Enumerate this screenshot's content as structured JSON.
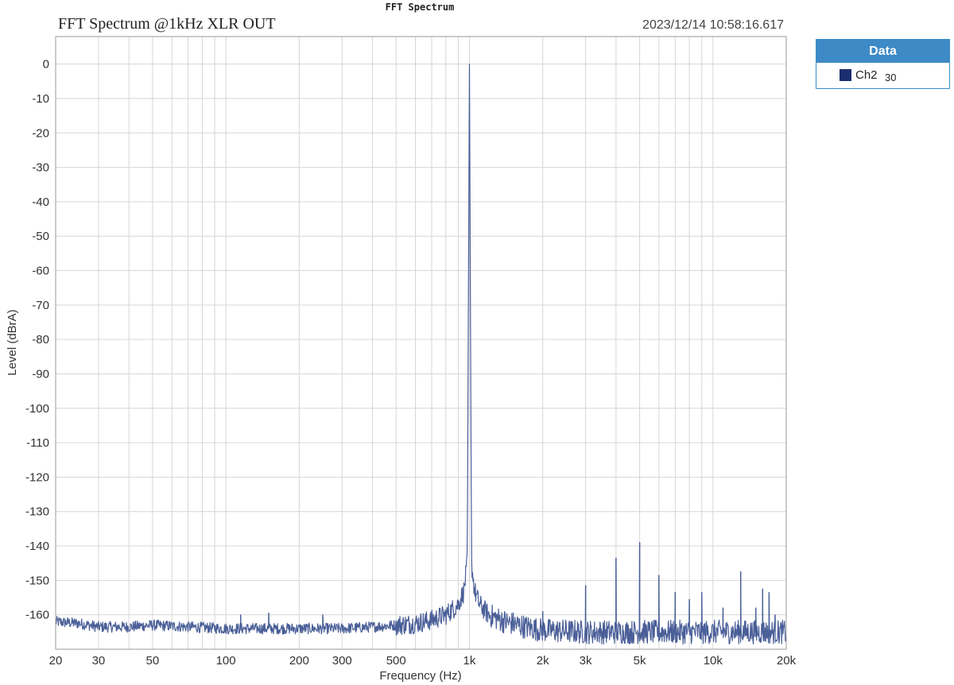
{
  "window": {
    "title": "FFT Spectrum"
  },
  "timestamp": "2023/12/14 10:58:16.617",
  "legend": {
    "header": "Data",
    "items": [
      {
        "name": "Ch2",
        "count": "30",
        "color": "#1b2f6e"
      }
    ]
  },
  "colors": {
    "trace": "#4a5f98",
    "grid": "#d6d6d6",
    "legend_header": "#3d8ac6"
  },
  "chart_data": {
    "type": "line",
    "title": "FFT Spectrum @1kHz XLR OUT",
    "xlabel": "Frequency (Hz)",
    "ylabel": "Level (dBrA)",
    "xscale": "log",
    "xlim": [
      20,
      20000
    ],
    "ylim": [
      -170,
      8
    ],
    "grid": true,
    "legend_position": "right-outside",
    "x_ticks": [
      {
        "v": 20,
        "label": "20"
      },
      {
        "v": 30,
        "label": "30"
      },
      {
        "v": 50,
        "label": "50"
      },
      {
        "v": 100,
        "label": "100"
      },
      {
        "v": 200,
        "label": "200"
      },
      {
        "v": 300,
        "label": "300"
      },
      {
        "v": 500,
        "label": "500"
      },
      {
        "v": 1000,
        "label": "1k"
      },
      {
        "v": 2000,
        "label": "2k"
      },
      {
        "v": 3000,
        "label": "3k"
      },
      {
        "v": 5000,
        "label": "5k"
      },
      {
        "v": 10000,
        "label": "10k"
      },
      {
        "v": 20000,
        "label": "20k"
      }
    ],
    "x_minor_grid": [
      40,
      60,
      70,
      80,
      90,
      400,
      600,
      700,
      800,
      900,
      4000,
      6000,
      7000,
      8000,
      9000
    ],
    "y_ticks": [
      0,
      -10,
      -20,
      -30,
      -40,
      -50,
      -60,
      -70,
      -80,
      -90,
      -100,
      -110,
      -120,
      -130,
      -140,
      -150,
      -160
    ],
    "series": [
      {
        "name": "Ch2",
        "noise_floor": [
          [
            20,
            -162
          ],
          [
            25,
            -162.5
          ],
          [
            30,
            -163.5
          ],
          [
            40,
            -163.5
          ],
          [
            50,
            -163
          ],
          [
            70,
            -163.5
          ],
          [
            100,
            -164
          ],
          [
            150,
            -164
          ],
          [
            200,
            -164
          ],
          [
            300,
            -164
          ],
          [
            400,
            -163.5
          ],
          [
            500,
            -163
          ],
          [
            600,
            -162.5
          ],
          [
            700,
            -161.5
          ],
          [
            800,
            -160
          ],
          [
            900,
            -157
          ],
          [
            950,
            -153
          ],
          [
            980,
            -145
          ],
          [
            1000,
            0
          ],
          [
            1020,
            -145
          ],
          [
            1050,
            -153
          ],
          [
            1100,
            -157
          ],
          [
            1200,
            -160
          ],
          [
            1400,
            -162
          ],
          [
            1700,
            -163.5
          ],
          [
            2000,
            -164.5
          ],
          [
            3000,
            -165
          ],
          [
            5000,
            -165
          ],
          [
            10000,
            -165
          ],
          [
            20000,
            -165
          ]
        ],
        "peaks": [
          {
            "x": 1000,
            "y": 0
          },
          {
            "x": 2000,
            "y": -159
          },
          {
            "x": 3000,
            "y": -151.5
          },
          {
            "x": 4000,
            "y": -143.5
          },
          {
            "x": 5000,
            "y": -139
          },
          {
            "x": 6000,
            "y": -148.5
          },
          {
            "x": 7000,
            "y": -153.5
          },
          {
            "x": 8000,
            "y": -155.5
          },
          {
            "x": 9000,
            "y": -153.5
          },
          {
            "x": 11000,
            "y": -158
          },
          {
            "x": 13000,
            "y": -147.5
          },
          {
            "x": 15000,
            "y": -158
          },
          {
            "x": 16000,
            "y": -152.5
          },
          {
            "x": 17000,
            "y": -153.5
          },
          {
            "x": 18000,
            "y": -160
          },
          {
            "x": 115,
            "y": -160
          },
          {
            "x": 150,
            "y": -159.5
          },
          {
            "x": 250,
            "y": -160
          }
        ]
      }
    ]
  }
}
